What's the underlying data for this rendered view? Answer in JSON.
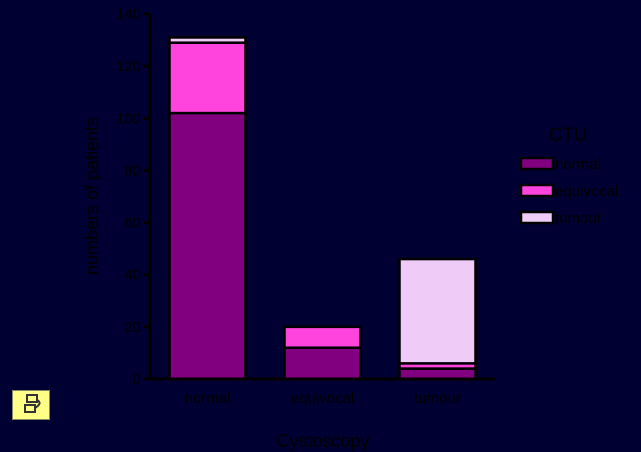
{
  "chart_data": {
    "type": "bar",
    "stacked": true,
    "categories": [
      "normal",
      "equivocal",
      "tumour"
    ],
    "series": [
      {
        "name": "normal",
        "color": "#800080",
        "values": [
          102,
          12,
          4
        ]
      },
      {
        "name": "equivocal",
        "color": "#ff44dd",
        "values": [
          27,
          8,
          2
        ]
      },
      {
        "name": "tumour",
        "color": "#eeccf7",
        "values": [
          2,
          0,
          40
        ]
      }
    ],
    "xlabel": "Cystoscopy",
    "ylabel": "numbers of patients",
    "ylim": [
      0,
      140
    ],
    "yticks": [
      0,
      20,
      40,
      60,
      80,
      100,
      120,
      140
    ],
    "legend": {
      "title": "CTU",
      "position": "right"
    },
    "grid": false
  },
  "corner_icon": "document-icon"
}
